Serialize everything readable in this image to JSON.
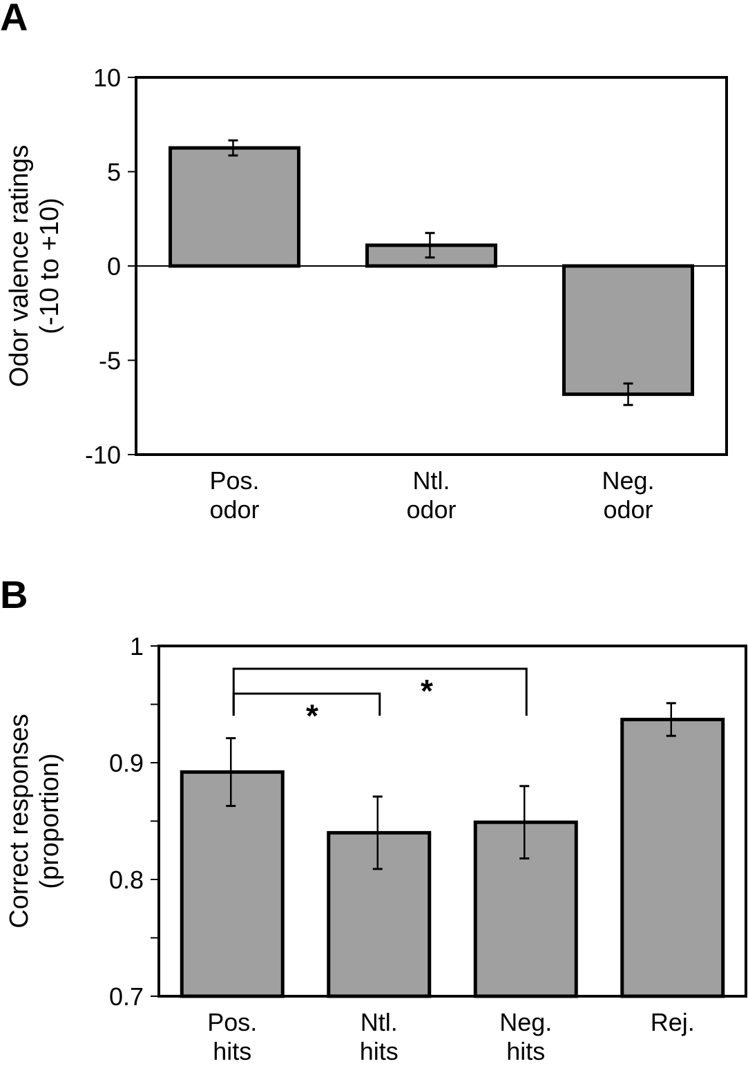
{
  "chart_data": [
    {
      "type": "bar",
      "panel_label": "A",
      "categories": [
        [
          "Pos.",
          "odor"
        ],
        [
          "Ntl.",
          "odor"
        ],
        [
          "Neg.",
          "odor"
        ]
      ],
      "values": [
        6.26,
        1.1,
        -6.8
      ],
      "errors": [
        0.4,
        0.65,
        0.57
      ],
      "ylabel": [
        "Odor valence ratings",
        "(-10 to +10)"
      ],
      "ylim": [
        -10,
        10
      ],
      "yticks": [
        -10,
        -5,
        0,
        5,
        10
      ],
      "ytick_labels": [
        "-10",
        "-5",
        "0",
        "5",
        "10"
      ],
      "zero_line": true,
      "bar_color": "#a0a0a0",
      "grid": false
    },
    {
      "type": "bar",
      "panel_label": "B",
      "categories": [
        [
          "Pos.",
          "hits"
        ],
        [
          "Ntl.",
          "hits"
        ],
        [
          "Neg.",
          "hits"
        ],
        [
          "Rej."
        ]
      ],
      "values": [
        0.892,
        0.84,
        0.849,
        0.937
      ],
      "errors": [
        0.029,
        0.031,
        0.031,
        0.014
      ],
      "ylabel": [
        "Correct responses",
        "(proportion)"
      ],
      "ylim": [
        0.7,
        1.0
      ],
      "yticks": [
        0.7,
        0.75,
        0.8,
        0.85,
        0.9,
        0.95,
        1.0
      ],
      "ytick_labels": [
        "0.7",
        "",
        "0.8",
        "",
        "0.9",
        "",
        "1"
      ],
      "significance": [
        {
          "from": 0,
          "to": 1,
          "label": "*"
        },
        {
          "from": 0,
          "to": 2,
          "label": "*"
        }
      ],
      "bar_color": "#a0a0a0",
      "grid": false
    }
  ]
}
